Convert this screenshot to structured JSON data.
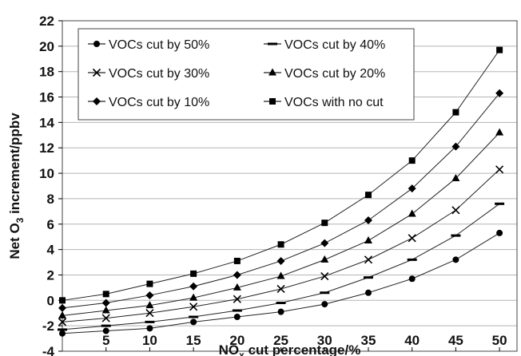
{
  "chart_data": {
    "type": "line",
    "xlabel": "NOx cut percentage/%",
    "xlabel_parts": {
      "base": "NO",
      "sub": "x",
      "rest": " cut percentage/%"
    },
    "ylabel": "Net O3 increment/ppbv",
    "ylabel_parts": {
      "base": "Net O",
      "sub": "3",
      "rest": " increment/ppbv"
    },
    "xlim": [
      0,
      52
    ],
    "ylim": [
      -4,
      22
    ],
    "xticks": [
      5,
      10,
      15,
      20,
      25,
      30,
      35,
      40,
      45,
      50
    ],
    "yticks": [
      -4,
      -2,
      0,
      2,
      4,
      6,
      8,
      10,
      12,
      14,
      16,
      18,
      20,
      22
    ],
    "grid": true,
    "legend_placement": "top-left, two columns",
    "x": [
      0,
      5,
      10,
      15,
      20,
      25,
      30,
      35,
      40,
      45,
      50
    ],
    "series": [
      {
        "name": "VOCs cut by 50%",
        "marker": "circle",
        "values": [
          -2.6,
          -2.4,
          -2.2,
          -1.7,
          -1.3,
          -0.9,
          -0.3,
          0.6,
          1.7,
          3.2,
          5.3
        ]
      },
      {
        "name": "VOCs cut by 40%",
        "marker": "dash",
        "values": [
          -2.3,
          -2.0,
          -1.7,
          -1.3,
          -0.8,
          -0.2,
          0.6,
          1.8,
          3.2,
          5.1,
          7.6
        ]
      },
      {
        "name": "VOCs cut by 30%",
        "marker": "x",
        "values": [
          -1.7,
          -1.4,
          -1.0,
          -0.5,
          0.1,
          0.9,
          1.9,
          3.2,
          4.9,
          7.1,
          10.3
        ]
      },
      {
        "name": "VOCs cut by 20%",
        "marker": "triangle",
        "values": [
          -1.2,
          -0.8,
          -0.4,
          0.2,
          1.0,
          1.9,
          3.2,
          4.7,
          6.8,
          9.6,
          13.2
        ]
      },
      {
        "name": "VOCs cut by 10%",
        "marker": "diamond",
        "values": [
          -0.6,
          -0.2,
          0.4,
          1.1,
          2.0,
          3.1,
          4.5,
          6.3,
          8.8,
          12.1,
          16.3
        ]
      },
      {
        "name": "VOCs with no cut",
        "marker": "square",
        "values": [
          0.0,
          0.5,
          1.3,
          2.1,
          3.1,
          4.4,
          6.1,
          8.3,
          11.0,
          14.8,
          19.7
        ]
      }
    ]
  }
}
